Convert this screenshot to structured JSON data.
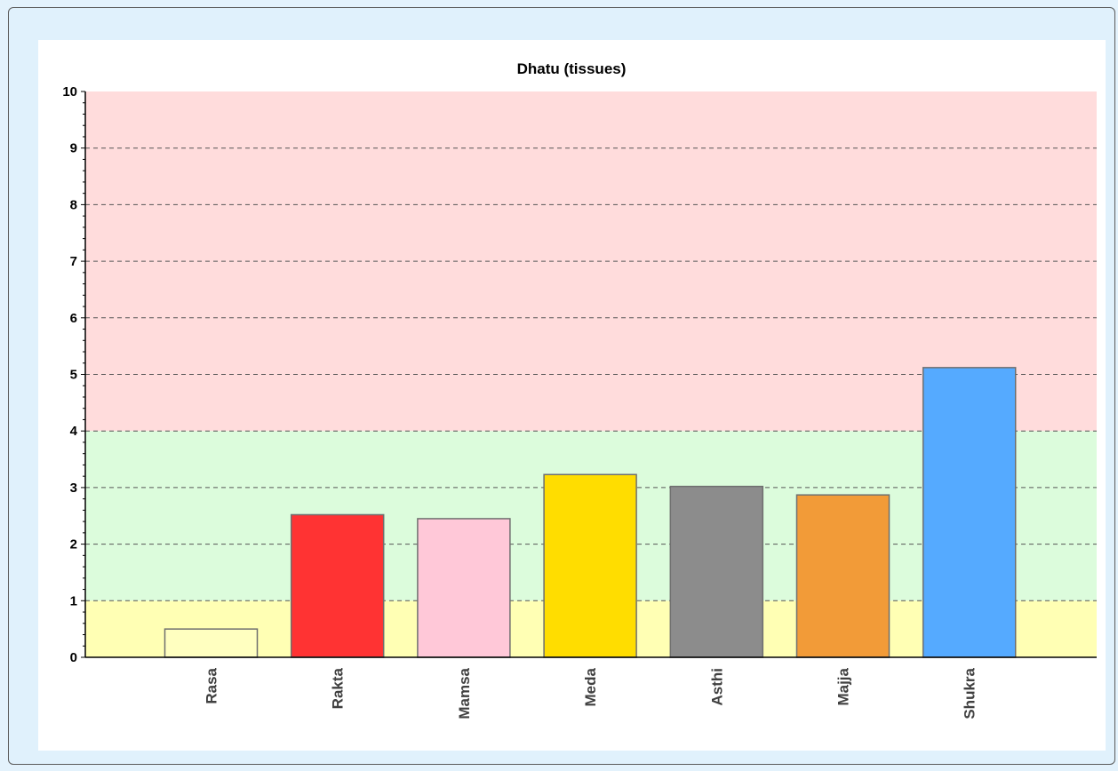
{
  "chart_data": {
    "type": "bar",
    "title": "Dhatu (tissues)",
    "categories": [
      "Rasa",
      "Rakta",
      "Mamsa",
      "Meda",
      "Asthi",
      "Majja",
      "Shukra"
    ],
    "values": [
      0.5,
      2.52,
      2.45,
      3.23,
      3.02,
      2.87,
      5.12
    ],
    "colors": [
      "#ffffc0",
      "#ff3333",
      "#ffc8d8",
      "#ffdd00",
      "#8c8c8c",
      "#f29b38",
      "#55aaff"
    ],
    "ylim": [
      0,
      10
    ],
    "yticks": [
      0,
      1,
      2,
      3,
      4,
      5,
      6,
      7,
      8,
      9,
      10
    ],
    "grid": true,
    "bands": [
      {
        "from": 0,
        "to": 1,
        "color": "#ffffb4"
      },
      {
        "from": 1,
        "to": 4,
        "color": "#dcfcdc"
      },
      {
        "from": 4,
        "to": 10,
        "color": "#ffdcdc"
      }
    ]
  }
}
